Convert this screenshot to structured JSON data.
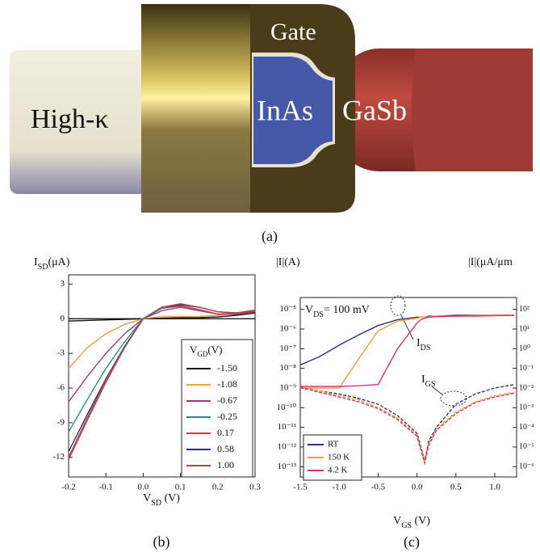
{
  "device_labels": {
    "high_k": "High-κ",
    "gate": "Gate",
    "inas": "InAs",
    "gasb": "GaSb"
  },
  "panel_labels": [
    "(a)",
    "(b)",
    "(c)"
  ],
  "chart_data": [
    {
      "type": "line",
      "xlabel": [
        "V",
        "SD",
        " (V)"
      ],
      "ylabel": [
        "I",
        "SD",
        "(μA)"
      ],
      "x": [
        -0.2,
        -0.15,
        -0.1,
        -0.05,
        0,
        0.05,
        0.1,
        0.15,
        0.2,
        0.25,
        0.3
      ],
      "xlim": [
        -0.2,
        0.3
      ],
      "ylim": [
        -13.7,
        3.8
      ],
      "xticks": [
        -0.2,
        -0.1,
        {
          "value": 0,
          "label": "0.0"
        },
        0.1,
        0.2,
        0.3
      ],
      "yticks": [
        3,
        0,
        -3,
        -6,
        -9,
        -12
      ],
      "zero_line": true,
      "legend_title": [
        "V",
        "GD",
        "(V)"
      ],
      "legend": "lower right",
      "series": [
        {
          "name": "-1.50",
          "color": "#111111",
          "values": [
            -0.2,
            -0.15,
            -0.1,
            -0.05,
            0,
            0.05,
            0.1,
            0.1,
            0.15,
            0.3,
            0.5
          ]
        },
        {
          "name": "-1.08",
          "color": "#e8a33a",
          "values": [
            -4.3,
            -2.5,
            -1.3,
            -0.5,
            0,
            0.2,
            0.2,
            0.2,
            0.3,
            0.5,
            0.8
          ]
        },
        {
          "name": "-0.67",
          "color": "#a0388a",
          "values": [
            -7.2,
            -5.0,
            -3.0,
            -1.3,
            0,
            0.7,
            1.0,
            0.7,
            0.4,
            0.5,
            0.7
          ]
        },
        {
          "name": "-0.25",
          "color": "#2a8a8a",
          "values": [
            -9.8,
            -7.0,
            -4.3,
            -2.0,
            0,
            0.9,
            1.1,
            0.8,
            0.4,
            0.4,
            0.7
          ]
        },
        {
          "name": "0.17",
          "color": "#e03040",
          "values": [
            -12.2,
            -8.8,
            -5.5,
            -2.5,
            0,
            1.0,
            1.1,
            0.8,
            0.4,
            0.4,
            0.6
          ]
        },
        {
          "name": "0.58",
          "color": "#2c2c80",
          "values": [
            -11.5,
            -8.3,
            -5.2,
            -2.4,
            0,
            1.0,
            1.2,
            1.0,
            0.6,
            0.5,
            0.7
          ]
        },
        {
          "name": "1.00",
          "color": "#9c5050",
          "values": [
            -12.0,
            -8.6,
            -5.3,
            -2.5,
            0,
            1.0,
            1.3,
            1.0,
            0.6,
            0.5,
            0.7
          ]
        }
      ]
    },
    {
      "type": "line",
      "xlabel": [
        "V",
        "GS",
        " (V)"
      ],
      "ylabel": [
        "|I|(A)"
      ],
      "y2label": [
        "|I|(μA/μm"
      ],
      "annotations": {
        "vds": [
          "V",
          "DS",
          "= 100 mV"
        ],
        "ids": [
          "I",
          "DS"
        ],
        "igs": [
          "I",
          "GS"
        ]
      },
      "log_y": true,
      "x": [
        -1.5,
        -1.25,
        -1.0,
        -0.75,
        -0.5,
        -0.25,
        0,
        0.05,
        0.1,
        0.15,
        0.25,
        0.5,
        0.75,
        1.0,
        1.25
      ],
      "xlim": [
        -1.5,
        1.28
      ],
      "ylim": [
        3e-14,
        4e-05
      ],
      "y2lim": [
        3e-07,
        400
      ],
      "xticks": [
        -1.5,
        {
          "value": -1.0,
          "label": "-1.0"
        },
        -0.5,
        {
          "value": 0,
          "label": "0.0"
        },
        0.5,
        {
          "value": 1.0,
          "label": "1.0"
        }
      ],
      "yticks": [
        {
          "value": 1e-05,
          "label": "10⁻⁵"
        },
        {
          "value": 1e-06,
          "label": "10⁻⁶"
        },
        {
          "value": 1e-07,
          "label": "10⁻⁷"
        },
        {
          "value": 1e-08,
          "label": "10⁻⁸"
        },
        {
          "value": 1e-09,
          "label": "10⁻⁹"
        },
        {
          "value": 1e-10,
          "label": "10⁻¹⁰"
        },
        {
          "value": 1e-11,
          "label": "10⁻¹¹"
        },
        {
          "value": 1e-12,
          "label": "10⁻¹²"
        },
        {
          "value": 1e-13,
          "label": "10⁻¹³"
        }
      ],
      "y2ticks": [
        {
          "value": 100,
          "label": "10²"
        },
        {
          "value": 10,
          "label": "10¹"
        },
        {
          "value": 1,
          "label": "10⁰"
        },
        {
          "value": 0.1,
          "label": "10⁻¹"
        },
        {
          "value": 0.01,
          "label": "10⁻²"
        },
        {
          "value": 0.001,
          "label": "10⁻³"
        },
        {
          "value": 0.0001,
          "label": "10⁻⁴"
        },
        {
          "value": 1e-05,
          "label": "10⁻⁵"
        },
        {
          "value": 1e-06,
          "label": "10⁻⁶"
        }
      ],
      "legend": "lower left",
      "series": [
        {
          "name": "RT",
          "color": "#2c3580",
          "values": [
            1.5e-08,
            4e-08,
            1.5e-07,
            5e-07,
            1.5e-06,
            3e-06,
            4e-06,
            4e-06,
            4e-06,
            4.5e-06,
            4.5e-06,
            5e-06,
            5e-06,
            5e-06,
            5e-06
          ],
          "igs_values": [
            1e-09,
            7e-10,
            5e-10,
            3e-10,
            1.5e-10,
            4e-11,
            5e-12,
            1e-12,
            2e-13,
            2e-12,
            1e-11,
            1.5e-10,
            5e-10,
            1e-09,
            1.5e-09
          ]
        },
        {
          "name": "150 K",
          "color": "#f0a030",
          "values": [
            1e-09,
            1e-09,
            1e-09,
            3e-08,
            8e-07,
            2.5e-06,
            3.5e-06,
            4e-06,
            4e-06,
            4.2e-06,
            4.5e-06,
            4.5e-06,
            4.8e-06,
            5e-06,
            5e-06
          ],
          "igs_values": [
            1.2e-09,
            7e-10,
            4e-10,
            2.5e-10,
            1e-10,
            3e-11,
            4e-12,
            8e-13,
            2e-13,
            1.5e-12,
            8e-12,
            6e-11,
            2e-10,
            4e-10,
            6e-10
          ]
        },
        {
          "name": "4.2 K",
          "color": "#e0306a",
          "values": [
            1.2e-09,
            1.2e-09,
            1.2e-09,
            1.3e-09,
            1.5e-09,
            1e-07,
            2e-06,
            3e-06,
            3.5e-06,
            4e-06,
            4.2e-06,
            4.5e-06,
            4.5e-06,
            4.8e-06,
            5e-06
          ],
          "igs_values": [
            1.1e-09,
            6e-10,
            3.5e-10,
            2e-10,
            9e-11,
            2.5e-11,
            3.5e-12,
            7e-13,
            1.5e-13,
            1.2e-12,
            7e-12,
            5e-11,
            1.8e-10,
            3.5e-10,
            5.5e-10
          ]
        }
      ]
    }
  ]
}
